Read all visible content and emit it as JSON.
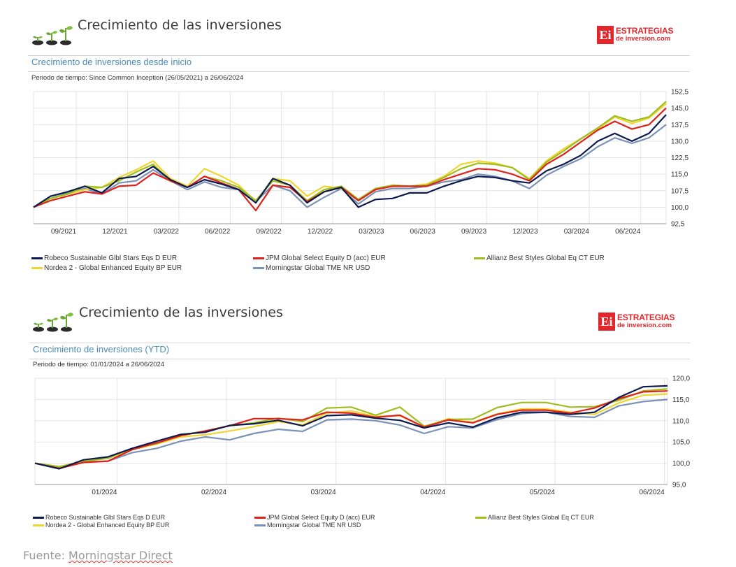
{
  "source": {
    "prefix": "Fuente: ",
    "name": "Morningstar Direct"
  },
  "colors": {
    "robeco": "#0d1a4f",
    "jpm": "#e0211b",
    "allianz": "#9fbd1e",
    "nordea": "#eed631",
    "morningstar": "#7b91b6"
  },
  "panels": [
    {
      "title": "Crecimiento de las inversiones",
      "logo_top": "ESTRATEGIAS",
      "logo_bottom": "de inversion.com",
      "logo_mark": "Ei",
      "subtitle": "Crecimiento de inversiones desde inicio",
      "period": "Periodo de tiempo: Since Common Inception (26/05/2021) a 26/06/2024",
      "legend": [
        "Robeco Sustainable Glbl Stars Eqs D EUR",
        "JPM Global Select Equity D (acc) EUR",
        "Allianz Best Styles Global Eq CT EUR",
        "Nordea 2 - Global Enhanced Equity BP EUR",
        "Morningstar Global TME NR USD"
      ]
    },
    {
      "title": "Crecimiento de las inversiones",
      "logo_top": "ESTRATEGIAS",
      "logo_bottom": "de inversion.com",
      "logo_mark": "Ei",
      "subtitle": "Crecimiento de inversiones (YTD)",
      "period": "Periodo de tiempo: 01/01/2024 a 26/06/2024",
      "legend": [
        "Robeco Sustainable Glbl Stars Eqs D EUR",
        "JPM Global Select Equity D (acc) EUR",
        "Allianz Best Styles Global Eq CT EUR",
        "Nordea 2 - Global Enhanced Equity BP EUR",
        "Morningstar Global TME NR USD"
      ]
    }
  ],
  "chart_data": [
    {
      "type": "line",
      "title": "Crecimiento de inversiones desde inicio",
      "x_labels": [
        "09/2021",
        "12/2021",
        "03/2022",
        "06/2022",
        "09/2022",
        "12/2022",
        "03/2023",
        "06/2023",
        "09/2023",
        "12/2023",
        "03/2024",
        "06/2024"
      ],
      "x_label_pos": [
        2.5,
        5.5,
        8.5,
        11.5,
        14.5,
        17.5,
        20.5,
        23.5,
        26.5,
        29.5,
        32.5,
        35.5
      ],
      "x_range": [
        0,
        37
      ],
      "y_ticks": [
        "152,5",
        "145,0",
        "137,5",
        "130,0",
        "122,5",
        "115,0",
        "107,5",
        "100,0",
        "92,5"
      ],
      "y_tick_values": [
        152.5,
        145,
        137.5,
        130,
        122.5,
        115,
        107.5,
        100,
        92.5
      ],
      "ylim": [
        92.5,
        152.5
      ],
      "x": [
        0,
        1,
        2,
        3,
        4,
        5,
        6,
        7,
        8,
        9,
        10,
        11,
        12,
        13,
        14,
        15,
        16,
        17,
        18,
        19,
        20,
        21,
        22,
        23,
        24,
        25,
        26,
        27,
        28,
        29,
        30,
        31,
        32,
        33,
        34,
        35,
        36,
        37
      ],
      "series": [
        {
          "name": "Morningstar Global TME NR USD",
          "key": "morningstar",
          "values": [
            100,
            104,
            106.5,
            108.5,
            106,
            111,
            112,
            117,
            112,
            108,
            111.5,
            109,
            108,
            102.5,
            110,
            107.5,
            100,
            104.5,
            108.5,
            101.5,
            107,
            108.5,
            108.5,
            109.5,
            111.5,
            112.5,
            115,
            114,
            112,
            108.5,
            114.5,
            118.5,
            122,
            127.5,
            131.5,
            129,
            131.5,
            137.5
          ]
        },
        {
          "name": "Nordea 2 - Global Enhanced Equity BP EUR",
          "key": "nordea",
          "values": [
            100,
            104,
            106,
            108,
            109,
            113.5,
            117,
            121,
            113,
            109.5,
            117.5,
            114,
            110,
            102.5,
            113,
            112,
            105,
            109.5,
            108.5,
            103,
            108,
            110,
            109.5,
            110.5,
            114,
            119.5,
            121,
            120,
            118,
            113,
            121,
            126.5,
            131,
            135.5,
            141,
            138,
            140.5,
            147
          ]
        },
        {
          "name": "Allianz Best Styles Global Eq CT EUR",
          "key": "allianz",
          "values": [
            100,
            104,
            106,
            109.5,
            109,
            112,
            116,
            119.5,
            112,
            109,
            114,
            112,
            109,
            103,
            112,
            110,
            103,
            108,
            109.5,
            103.5,
            108.5,
            110,
            109.5,
            110,
            113.5,
            117.5,
            120,
            119.5,
            118,
            112.5,
            120.5,
            125.5,
            131,
            136,
            141.5,
            139,
            141,
            148
          ]
        },
        {
          "name": "JPM Global Select Equity D (acc) EUR",
          "key": "jpm",
          "values": [
            100,
            103,
            105,
            107,
            106,
            109.5,
            110,
            115.5,
            112,
            109,
            114,
            111,
            108,
            98.5,
            110,
            109,
            102.5,
            107,
            109,
            103,
            108,
            109.5,
            109.5,
            109.5,
            112.5,
            115,
            117.5,
            117,
            115,
            112,
            119.5,
            124,
            129.5,
            135,
            139,
            135.5,
            137.5,
            145
          ]
        },
        {
          "name": "Robeco Sustainable Glbl Stars Eqs D EUR",
          "key": "robeco",
          "values": [
            100,
            105,
            107,
            109.5,
            106.5,
            113,
            114,
            118.5,
            112.5,
            109,
            112.5,
            110.5,
            108,
            102,
            113,
            110,
            102,
            107,
            109,
            100,
            103.5,
            104,
            106.5,
            106.5,
            109.5,
            112,
            114,
            113.5,
            112,
            111,
            116.5,
            119.5,
            123.5,
            130,
            133.5,
            130,
            133.5,
            142
          ]
        }
      ]
    },
    {
      "type": "line",
      "title": "Crecimiento de inversiones (YTD)",
      "x_labels": [
        "01/2024",
        "02/2024",
        "03/2024",
        "04/2024",
        "05/2024",
        "06/2024"
      ],
      "x_label_pos": [
        13.5,
        31.5,
        49.5,
        67.5,
        85.5,
        103.5
      ],
      "x_range": [
        0,
        104
      ],
      "y_ticks": [
        "120,0",
        "115,0",
        "110,0",
        "105,0",
        "100,0",
        "95,0"
      ],
      "y_tick_values": [
        120,
        115,
        110,
        105,
        100,
        95
      ],
      "ylim": [
        95,
        120
      ],
      "x": [
        0,
        4,
        8,
        12,
        16,
        20,
        24,
        28,
        32,
        36,
        40,
        44,
        48,
        52,
        56,
        60,
        64,
        68,
        72,
        76,
        80,
        84,
        88,
        92,
        96,
        100,
        104
      ],
      "series": [
        {
          "name": "Morningstar Global TME NR USD",
          "key": "morningstar",
          "values": [
            100,
            98.8,
            100.3,
            100.5,
            102.5,
            103.5,
            105.2,
            106.2,
            105.5,
            107,
            108,
            107.5,
            110.2,
            110.4,
            110,
            109,
            107,
            108.6,
            108.3,
            110.3,
            111.7,
            112,
            111,
            110.8,
            113.5,
            114.5,
            115
          ]
        },
        {
          "name": "Nordea 2 - Global Enhanced Equity BP EUR",
          "key": "nordea",
          "values": [
            100,
            99.2,
            100.5,
            101.2,
            103.2,
            104.5,
            106.2,
            106.7,
            107.6,
            108.6,
            109.8,
            109,
            111.8,
            112.3,
            111,
            111.2,
            108.5,
            110.5,
            109.6,
            111.6,
            112.8,
            112.8,
            112,
            111.5,
            114.2,
            116,
            116.3
          ]
        },
        {
          "name": "Allianz Best Styles Global Eq CT EUR",
          "key": "allianz",
          "values": [
            100,
            99.2,
            100.4,
            101.2,
            103.5,
            104.6,
            106.6,
            107.6,
            108.8,
            109.5,
            110.6,
            109.8,
            113,
            113.2,
            111.3,
            113.2,
            108.7,
            110.3,
            110.4,
            113.1,
            114.3,
            114.3,
            113.2,
            113.3,
            114.8,
            117,
            117.5
          ]
        },
        {
          "name": "JPM Global Select Equity D (acc) EUR",
          "key": "jpm",
          "values": [
            100,
            98.8,
            100.2,
            100.5,
            103.2,
            104.8,
            106.5,
            107.6,
            108.8,
            110.5,
            110.5,
            110.2,
            112,
            111.8,
            110.8,
            111.3,
            108.5,
            110.2,
            109.5,
            111.5,
            112.5,
            112.5,
            111.8,
            113,
            115.2,
            116.8,
            117
          ]
        },
        {
          "name": "Robeco Sustainable Glbl Stars Eqs D EUR",
          "key": "robeco",
          "values": [
            100,
            98.7,
            100.8,
            101.5,
            103.5,
            105.2,
            106.8,
            107.3,
            108.9,
            109.3,
            110.1,
            108.8,
            111.2,
            111.4,
            110.6,
            110.1,
            108.3,
            109.5,
            108.5,
            110.7,
            112,
            112,
            111.5,
            112,
            115.5,
            118,
            118.2
          ]
        }
      ]
    }
  ]
}
